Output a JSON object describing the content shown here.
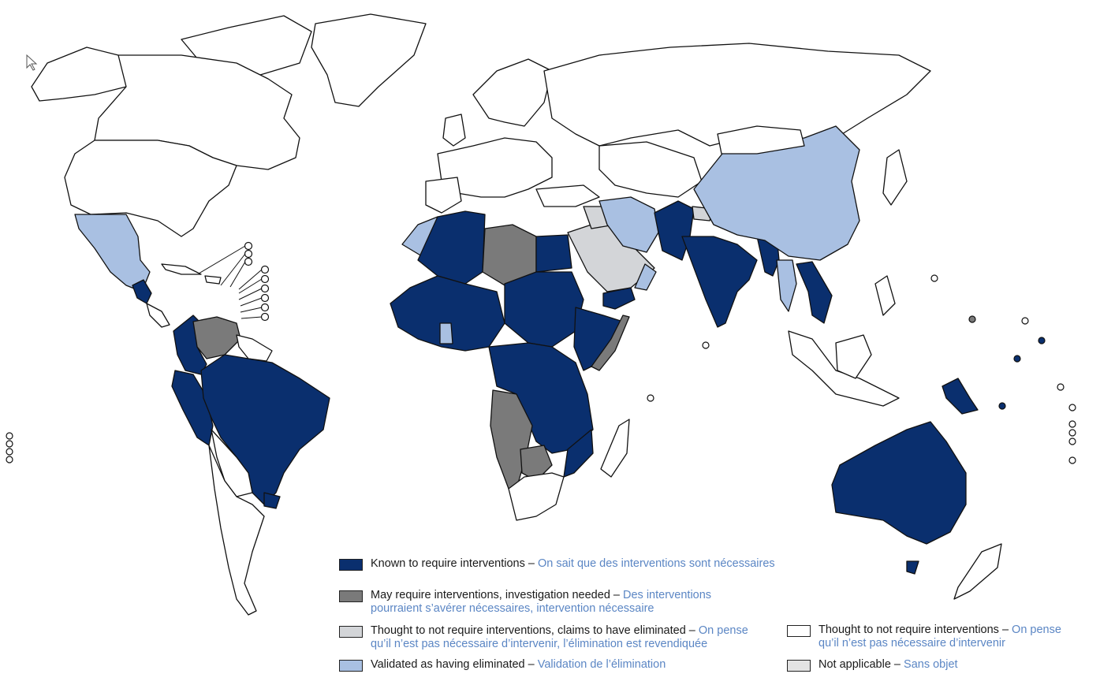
{
  "legend": {
    "known": {
      "en": "Known to require interventions",
      "fr": "On sait que des interventions sont nécessaires",
      "color": "#0a2f6e"
    },
    "may": {
      "en": "May require interventions, investigation needed",
      "fr": "Des interventions pourraient s’avérer nécessaires, intervention nécessaire",
      "color": "#7a7a7a"
    },
    "claims": {
      "en": "Thought to not require interventions, claims to have eliminated",
      "fr": "On pense qu’il n’est pas nécessaire d’intervenir, l’élimination est revendiquée",
      "color": "#d3d5d8"
    },
    "validated": {
      "en": "Validated as having eliminated",
      "fr": "Validation de l’élimination",
      "color": "#a9c0e2"
    },
    "none": {
      "en": "Thought to not require interventions",
      "fr": "On pense qu’il n’est pas nécessaire d’intervenir",
      "color": "#ffffff"
    },
    "na": {
      "en": "Not applicable",
      "fr": "Sans objet",
      "color": "#e3e3e3"
    },
    "separator": " – "
  }
}
